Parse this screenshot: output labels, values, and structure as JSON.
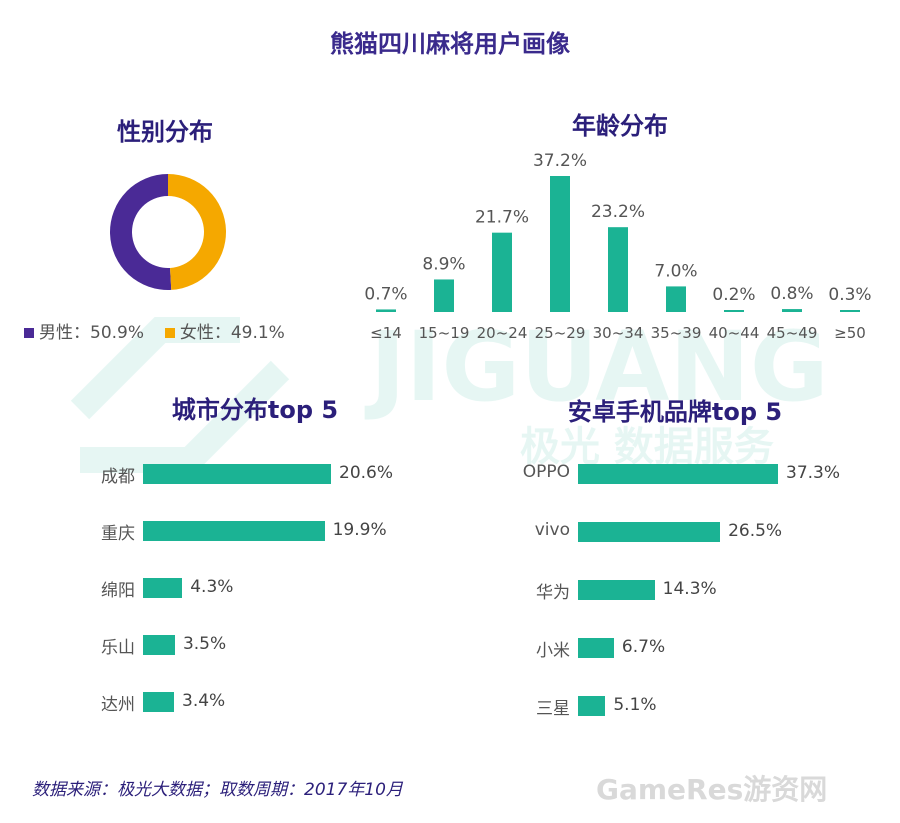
{
  "title": "熊猫四川麻将用户画像",
  "watermark": {
    "logo_text": "JIGUANG",
    "sub_text": "极光 数据服务"
  },
  "gender": {
    "title": "性别分布",
    "legend": [
      {
        "label": "男性：50.9%",
        "color": "#4a2a96"
      },
      {
        "label": "女性：49.1%",
        "color": "#f5a800"
      }
    ]
  },
  "age": {
    "title": "年龄分布"
  },
  "city": {
    "title": "城市分布top 5"
  },
  "brand": {
    "title": "安卓手机品牌top 5"
  },
  "footer": "数据来源：极光大数据；取数周期：2017年10月",
  "brand_mark": "GameRes游资网",
  "colors": {
    "bar": "#1bb394",
    "title": "#3a2a8c",
    "male": "#4a2a96",
    "female": "#f5a800"
  },
  "chart_data": [
    {
      "type": "pie",
      "title": "性别分布",
      "categories": [
        "男性",
        "女性"
      ],
      "values": [
        50.9,
        49.1
      ],
      "unit": "%"
    },
    {
      "type": "bar",
      "title": "年龄分布",
      "categories": [
        "≤14",
        "15~19",
        "20~24",
        "25~29",
        "30~34",
        "35~39",
        "40~44",
        "45~49",
        "≥50"
      ],
      "values": [
        0.7,
        8.9,
        21.7,
        37.2,
        23.2,
        7.0,
        0.2,
        0.8,
        0.3
      ],
      "labels": [
        "0.7%",
        "8.9%",
        "21.7%",
        "37.2%",
        "23.2%",
        "7.0%",
        "0.2%",
        "0.8%",
        "0.3%"
      ],
      "ylim": [
        0,
        40
      ]
    },
    {
      "type": "bar",
      "orientation": "horizontal",
      "title": "城市分布top 5",
      "categories": [
        "成都",
        "重庆",
        "绵阳",
        "乐山",
        "达州"
      ],
      "values": [
        20.6,
        19.9,
        4.3,
        3.5,
        3.4
      ],
      "labels": [
        "20.6%",
        "19.9%",
        "4.3%",
        "3.5%",
        "3.4%"
      ]
    },
    {
      "type": "bar",
      "orientation": "horizontal",
      "title": "安卓手机品牌top 5",
      "categories": [
        "OPPO",
        "vivo",
        "华为",
        "小米",
        "三星"
      ],
      "values": [
        37.3,
        26.5,
        14.3,
        6.7,
        5.1
      ],
      "labels": [
        "37.3%",
        "26.5%",
        "14.3%",
        "6.7%",
        "5.1%"
      ]
    }
  ]
}
